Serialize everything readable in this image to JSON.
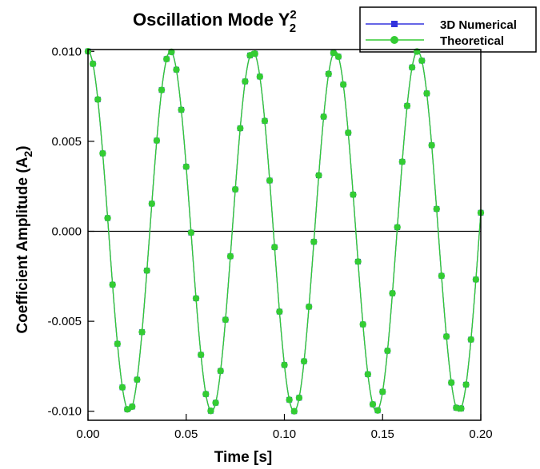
{
  "chart_data": {
    "type": "line",
    "title": "Oscillation Mode Y",
    "title_superscript": "2",
    "title_subscript": "2",
    "xlabel": "Time [s]",
    "ylabel": "Coefficient Amplitude (A",
    "ylabel_subscript": "2",
    "ylabel_suffix": ")",
    "xlim": [
      0.0,
      0.2
    ],
    "ylim": [
      -0.0105,
      0.0101
    ],
    "x_ticks": [
      "0.00",
      "0.05",
      "0.10",
      "0.15",
      "0.20"
    ],
    "y_ticks": [
      "0.010",
      "0.005",
      "0.000",
      "-0.005",
      "-0.010"
    ],
    "x_tick_values": [
      0.0,
      0.05,
      0.1,
      0.15,
      0.2
    ],
    "y_tick_values": [
      0.01,
      0.005,
      0.0,
      -0.005,
      -0.01
    ],
    "zero_line": true,
    "grid": false,
    "legend_position": "top-right",
    "wave_model": {
      "amplitude": 0.01,
      "period_s": 0.04196,
      "sample_interval_s": 0.0025
    },
    "series": [
      {
        "name": "3D Numerical",
        "color": "#3333dd",
        "marker": "square"
      },
      {
        "name": "Theoretical",
        "color": "#33cc33",
        "marker": "circle"
      }
    ]
  }
}
